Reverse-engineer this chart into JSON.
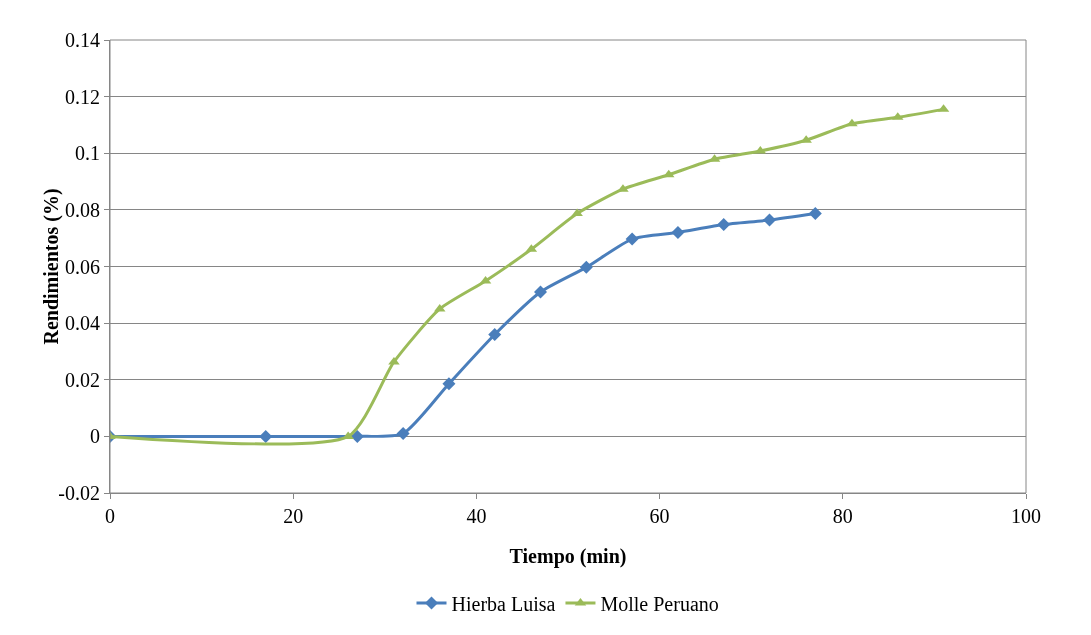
{
  "chart_data": {
    "type": "line",
    "xlabel": "Tiempo (min)",
    "ylabel": "Rendimientos (%)",
    "xlim": [
      0,
      100
    ],
    "xticks": [
      0,
      20,
      40,
      60,
      80,
      100
    ],
    "ylim": [
      -0.02,
      0.14
    ],
    "yticks": [
      -0.02,
      0,
      0.02,
      0.04,
      0.06,
      0.08,
      0.1,
      0.12,
      0.14
    ],
    "grid": "y",
    "legend": "bottom",
    "series": [
      {
        "name": "Hierba Luisa",
        "color": "#4a7ebb",
        "marker": "diamond",
        "x": [
          0,
          17,
          27,
          32,
          37,
          42,
          47,
          52,
          57,
          62,
          67,
          72,
          77
        ],
        "values": [
          0,
          0,
          0,
          0.001,
          0.0186,
          0.036,
          0.051,
          0.0597,
          0.0697,
          0.072,
          0.0748,
          0.0764,
          0.0787
        ]
      },
      {
        "name": "Molle Peruano",
        "color": "#9bbb59",
        "marker": "triangle",
        "x": [
          0,
          26,
          31,
          36,
          41,
          46,
          51,
          56,
          61,
          66,
          71,
          76,
          81,
          86,
          91
        ],
        "values": [
          0,
          0,
          0.0263,
          0.045,
          0.0549,
          0.0661,
          0.0787,
          0.0873,
          0.0924,
          0.0979,
          0.1008,
          0.1046,
          0.1104,
          0.1127,
          0.1155
        ]
      }
    ]
  }
}
